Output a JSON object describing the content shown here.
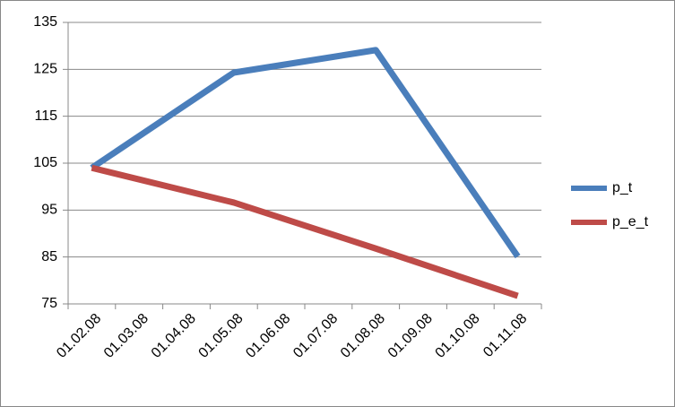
{
  "chart_data": {
    "type": "line",
    "x": [
      "01.02.08",
      "01.05.08",
      "01.08.08",
      "01.11.08"
    ],
    "xticks": [
      "01.02.08",
      "01.03.08",
      "01.04.08",
      "01.05.08",
      "01.06.08",
      "01.07.08",
      "01.08.08",
      "01.09.08",
      "01.10.08",
      "01.11.08"
    ],
    "series": [
      {
        "name": "p_t",
        "color": "#4a7ebb",
        "values": [
          104,
          124.3,
          129.1,
          85.1
        ]
      },
      {
        "name": "p_e_t",
        "color": "#be4b48",
        "values": [
          104,
          96.6,
          86.8,
          76.7
        ]
      }
    ],
    "ylim": [
      75,
      135
    ],
    "yticks": [
      75,
      85,
      95,
      105,
      115,
      125,
      135
    ],
    "grid": true,
    "legend": "right"
  }
}
